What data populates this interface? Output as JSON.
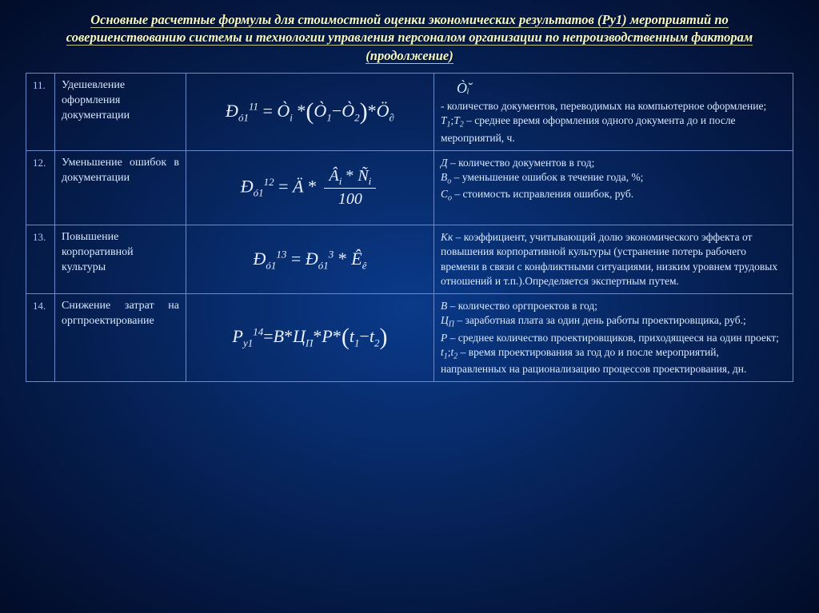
{
  "title": "Основные расчетные формулы для стоимостной оценки экономических результатов (Ру1) мероприятий по совершенствованию системы и технологии управления персоналом организации по непроизводственным факторам (продолжение)",
  "colors": {
    "bg_center": "#0a3a8a",
    "bg_edge": "#020c28",
    "title_color": "#f5f8c0",
    "text_color": "#d8e8ff",
    "border_color": "#6a8acc",
    "formula_color": "#e8f0ff"
  },
  "rows": [
    {
      "num": "11.",
      "name": "Удешевление оформления документации",
      "formula_html": "<i>Đ</i><span class='sub'>ó1</span><span class='sup'>11</span> <span class='op'>=</span> <i>Ò</i><span class='sub'>i</span> <span class='op'>*</span><span class='paren'>(</span><i>Ò</i><span class='sub'>1</span><span class='op'>−</span><i>Ò</i><span class='sub'>2</span><span class='paren'>)</span><span class='op'>*</span><i>Ö</i><span class='sub'>∂</span>",
      "desc_top_symbol": "Ò̆ᵢ",
      "desc_html": " - количество документов, переводимых на компьютерное оформление;<br><span class='var'>T<span class='subv'>1</span></span>;<span class='var'>T<span class='subv'>2</span></span> – среднее время оформления одного документа до и после мероприятий, ч."
    },
    {
      "num": "12.",
      "name": "Уменьшение ошибок в документации",
      "formula_html": "<i>Đ</i><span class='sub'>ó1</span><span class='sup'>12</span> <span class='op'>=</span> <i>Ä</i> <span class='op'>*</span> <span class='frac'><span class='top'><i>Â</i><span class='sub'>i</span> <span class='op'>*</span> <i>Ñ</i><span class='sub'>i</span></span><span class='bot'>100</span></span>",
      "desc_html": "<span class='var'>Д</span> – количество документов в год;<br><span class='var'>В<span class='subv'>о</span></span> – уменьшение ошибок в течение года, %;<br><span class='var'>С<span class='subv'>о</span></span> – стоимость исправления ошибок, руб."
    },
    {
      "num": "13.",
      "name": "Повышение корпоративной культуры",
      "formula_html": "<i>Đ</i><span class='sub'>ó1</span><span class='sup'>13</span> <span class='op'>=</span> <i>Đ</i><span class='sub'>ó1</span><span class='sup'>3</span> <span class='op'>*</span> <i>Ê</i><span class='sub'>ê</span>",
      "desc_html": "<span class='fsub'>Кк</span> – коэффициент, учитывающий долю экономического эффекта от повышения корпоративной культуры (устранение потерь рабочего времени в связи с конфликтными ситуациями, низким уровнем трудовых отношений и т.п.).Определяется экспертным путем."
    },
    {
      "num": "14.",
      "name": "Снижение затрат на оргпроектирование",
      "formula_html": "<i>P</i><span class='sub'>y1</span><span class='sup'>14</span><span class='op'>=</span><i>B</i><span class='op'>*</span><i>Ц</i><span class='sub'>П</span><span class='op'>*</span><i>P</i><span class='op'>*</span><span class='paren'>(</span><i>t</i><span class='sub'>1</span><span class='op'>−</span><i>t</i><span class='sub'>2</span><span class='paren'>)</span>",
      "desc_html": "<span class='var'>В</span> – количество оргпроектов в год;<br><span class='var'>Ц<span class='subv'>П</span></span> – заработная плата за один день работы проектировщика, руб.;<br><span class='var'>Р</span> – среднее количество проектировщиков, приходящееся на один проект;<br><span class='var'>t<span class='subv'>1</span></span>;<span class='var'>t<span class='subv'>2</span></span> – время проектирования за год до и после мероприятий, направленных на рационализацию процессов проектирования, дн."
    }
  ]
}
